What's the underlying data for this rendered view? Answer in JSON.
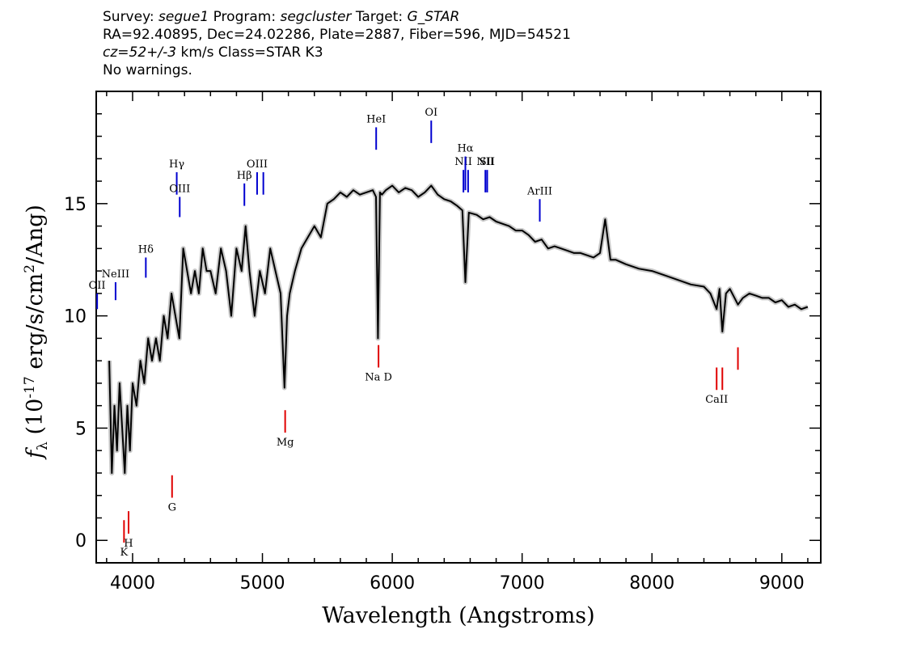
{
  "header": {
    "line1": {
      "survey_label": "Survey:",
      "survey": "segue1",
      "program_label": "Program:",
      "program": "segcluster",
      "target_label": "Target:",
      "target": "G_STAR"
    },
    "line2": "RA=92.40895, Dec=24.02286, Plate=2887, Fiber=596, MJD=54521",
    "line3": {
      "cz": "cz=52+/-3",
      "rest": " km/s Class=STAR K3"
    },
    "line4": "No warnings."
  },
  "chart_data": {
    "type": "line",
    "xlabel": "Wavelength (Angstroms)",
    "ylabel_symbol": "f",
    "ylabel_subscript": "λ",
    "ylabel_prefix": " (10",
    "ylabel_exp": "-17",
    "ylabel_mid": " erg/s/cm",
    "ylabel_exp2": "2",
    "ylabel_suffix": "/Ang)",
    "xlim": [
      3720,
      9300
    ],
    "ylim": [
      -1,
      20
    ],
    "xticks": [
      4000,
      5000,
      6000,
      7000,
      8000,
      9000
    ],
    "yticks": [
      0,
      5,
      10,
      15
    ],
    "series": [
      {
        "color": "#000000",
        "x": [
          3820,
          3840,
          3860,
          3880,
          3900,
          3920,
          3940,
          3960,
          3980,
          4000,
          4030,
          4060,
          4090,
          4120,
          4150,
          4180,
          4210,
          4240,
          4270,
          4300,
          4330,
          4360,
          4390,
          4420,
          4450,
          4480,
          4510,
          4540,
          4570,
          4600,
          4640,
          4680,
          4720,
          4760,
          4800,
          4840,
          4870,
          4900,
          4940,
          4980,
          5020,
          5060,
          5100,
          5140,
          5170,
          5190,
          5210,
          5250,
          5300,
          5350,
          5400,
          5450,
          5500,
          5550,
          5600,
          5650,
          5700,
          5750,
          5800,
          5850,
          5875,
          5890,
          5905,
          5920,
          5950,
          6000,
          6050,
          6100,
          6150,
          6200,
          6250,
          6300,
          6350,
          6400,
          6450,
          6500,
          6540,
          6563,
          6590,
          6650,
          6700,
          6750,
          6800,
          6850,
          6900,
          6950,
          7000,
          7050,
          7100,
          7150,
          7200,
          7250,
          7300,
          7350,
          7400,
          7450,
          7500,
          7550,
          7600,
          7640,
          7680,
          7720,
          7800,
          7900,
          8000,
          8100,
          8200,
          8300,
          8400,
          8450,
          8498,
          8520,
          8542,
          8570,
          8600,
          8662,
          8700,
          8750,
          8800,
          8850,
          8900,
          8950,
          9000,
          9050,
          9100,
          9150,
          9200
        ],
        "y": [
          8,
          3,
          6,
          4,
          7,
          5,
          3,
          6,
          4,
          7,
          6,
          8,
          7,
          9,
          8,
          9,
          8,
          10,
          9,
          11,
          10,
          9,
          13,
          12,
          11,
          12,
          11,
          13,
          12,
          12,
          11,
          13,
          12,
          10,
          13,
          12,
          14,
          12,
          10,
          12,
          11,
          13,
          12,
          11,
          6.8,
          10,
          11,
          12,
          13,
          13.5,
          14,
          13.5,
          15,
          15.2,
          15.5,
          15.3,
          15.6,
          15.4,
          15.5,
          15.6,
          15.3,
          9,
          15.5,
          15.4,
          15.6,
          15.8,
          15.5,
          15.7,
          15.6,
          15.3,
          15.5,
          15.8,
          15.4,
          15.2,
          15.1,
          14.9,
          14.7,
          11.5,
          14.6,
          14.5,
          14.3,
          14.4,
          14.2,
          14.1,
          14.0,
          13.8,
          13.8,
          13.6,
          13.3,
          13.4,
          13.0,
          13.1,
          13.0,
          12.9,
          12.8,
          12.8,
          12.7,
          12.6,
          12.8,
          14.3,
          12.5,
          12.5,
          12.3,
          12.1,
          12.0,
          11.8,
          11.6,
          11.4,
          11.3,
          11.0,
          10.3,
          11.2,
          9.3,
          11.0,
          11.2,
          10.5,
          10.8,
          11.0,
          10.9,
          10.8,
          10.8,
          10.6,
          10.7,
          10.4,
          10.5,
          10.3,
          10.4
        ]
      }
    ],
    "line_markers": [
      {
        "label": "OII",
        "wave": 3727,
        "color": "blue",
        "y_top": 10.3,
        "y_bottom": 11.0
      },
      {
        "label": "NeIII",
        "wave": 3869,
        "color": "blue",
        "y_top": 10.7,
        "y_bottom": 11.5
      },
      {
        "label": "Hδ",
        "wave": 4102,
        "color": "blue",
        "y_top": 11.7,
        "y_bottom": 12.6
      },
      {
        "label": "Hγ",
        "wave": 4340,
        "color": "blue",
        "y_top": 15.4,
        "y_bottom": 16.4
      },
      {
        "label": "OIII",
        "wave": 4363,
        "color": "blue",
        "y_top": 14.4,
        "y_bottom": 15.3
      },
      {
        "label": "Hβ",
        "wave": 4861,
        "color": "blue",
        "y_top": 14.9,
        "y_bottom": 15.9
      },
      {
        "label": "OIII",
        "wave": 4959,
        "color": "blue",
        "y_top": 15.4,
        "y_bottom": 16.4
      },
      {
        "label": "",
        "wave": 5007,
        "color": "blue",
        "y_top": 15.4,
        "y_bottom": 16.4
      },
      {
        "label": "HeI",
        "wave": 5876,
        "color": "blue",
        "y_top": 17.4,
        "y_bottom": 18.4
      },
      {
        "label": "OI",
        "wave": 6300,
        "color": "blue",
        "y_top": 17.7,
        "y_bottom": 18.7
      },
      {
        "label": "NII",
        "wave": 6548,
        "color": "blue",
        "y_top": 15.5,
        "y_bottom": 16.5
      },
      {
        "label": "Hα",
        "wave": 6563,
        "color": "blue",
        "y_top": 15.6,
        "y_bottom": 17.1
      },
      {
        "label": "",
        "wave": 6584,
        "color": "blue",
        "y_top": 15.5,
        "y_bottom": 16.5
      },
      {
        "label": "NII",
        "wave": 6717,
        "color": "blue",
        "y_top": 15.5,
        "y_bottom": 16.5
      },
      {
        "label": "SII",
        "wave": 6731,
        "color": "blue",
        "y_top": 15.5,
        "y_bottom": 16.5
      },
      {
        "label": "ArIII",
        "wave": 7136,
        "color": "blue",
        "y_top": 14.2,
        "y_bottom": 15.2
      },
      {
        "label": "K",
        "wave": 3934,
        "color": "red",
        "y_top": 0.9,
        "y_bottom": -0.1
      },
      {
        "label": "H",
        "wave": 3969,
        "color": "red",
        "y_top": 1.3,
        "y_bottom": 0.3
      },
      {
        "label": "G",
        "wave": 4304,
        "color": "red",
        "y_top": 2.9,
        "y_bottom": 1.9
      },
      {
        "label": "Mg",
        "wave": 5175,
        "color": "red",
        "y_top": 5.8,
        "y_bottom": 4.8
      },
      {
        "label": "Na D",
        "wave": 5894,
        "color": "red",
        "y_top": 8.7,
        "y_bottom": 7.7
      },
      {
        "label": "CaII",
        "wave": 8498,
        "color": "red",
        "y_top": 7.7,
        "y_bottom": 6.7
      },
      {
        "label": "",
        "wave": 8542,
        "color": "red",
        "y_top": 7.7,
        "y_bottom": 6.7
      },
      {
        "label": "",
        "wave": 8662,
        "color": "red",
        "y_top": 8.6,
        "y_bottom": 7.6
      }
    ]
  }
}
